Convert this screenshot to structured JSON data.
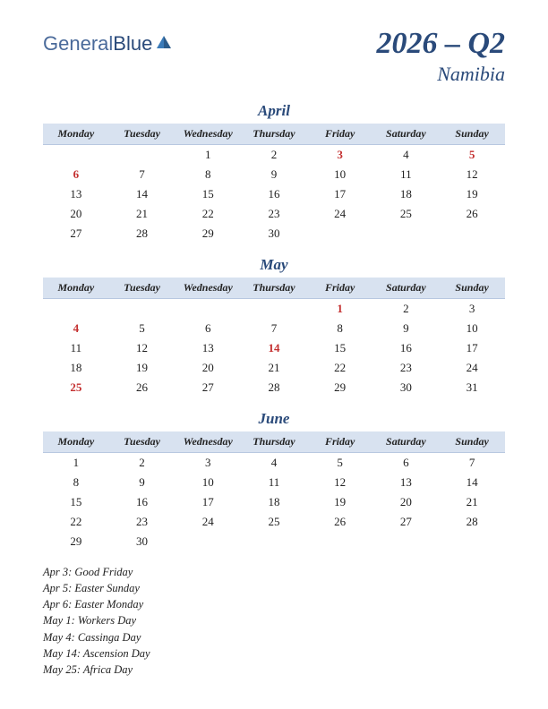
{
  "logo": {
    "part1": "General",
    "part2": "Blue"
  },
  "title": {
    "main": "2026 – Q2",
    "sub": "Namibia"
  },
  "weekdays": [
    "Monday",
    "Tuesday",
    "Wednesday",
    "Thursday",
    "Friday",
    "Saturday",
    "Sunday"
  ],
  "months": [
    {
      "name": "April",
      "weeks": [
        [
          null,
          null,
          {
            "d": 1
          },
          {
            "d": 2
          },
          {
            "d": 3,
            "h": true
          },
          {
            "d": 4
          },
          {
            "d": 5,
            "h": true
          }
        ],
        [
          {
            "d": 6,
            "h": true
          },
          {
            "d": 7
          },
          {
            "d": 8
          },
          {
            "d": 9
          },
          {
            "d": 10
          },
          {
            "d": 11
          },
          {
            "d": 12
          }
        ],
        [
          {
            "d": 13
          },
          {
            "d": 14
          },
          {
            "d": 15
          },
          {
            "d": 16
          },
          {
            "d": 17
          },
          {
            "d": 18
          },
          {
            "d": 19
          }
        ],
        [
          {
            "d": 20
          },
          {
            "d": 21
          },
          {
            "d": 22
          },
          {
            "d": 23
          },
          {
            "d": 24
          },
          {
            "d": 25
          },
          {
            "d": 26
          }
        ],
        [
          {
            "d": 27
          },
          {
            "d": 28
          },
          {
            "d": 29
          },
          {
            "d": 30
          },
          null,
          null,
          null
        ]
      ]
    },
    {
      "name": "May",
      "weeks": [
        [
          null,
          null,
          null,
          null,
          {
            "d": 1,
            "h": true
          },
          {
            "d": 2
          },
          {
            "d": 3
          }
        ],
        [
          {
            "d": 4,
            "h": true
          },
          {
            "d": 5
          },
          {
            "d": 6
          },
          {
            "d": 7
          },
          {
            "d": 8
          },
          {
            "d": 9
          },
          {
            "d": 10
          }
        ],
        [
          {
            "d": 11
          },
          {
            "d": 12
          },
          {
            "d": 13
          },
          {
            "d": 14,
            "h": true
          },
          {
            "d": 15
          },
          {
            "d": 16
          },
          {
            "d": 17
          }
        ],
        [
          {
            "d": 18
          },
          {
            "d": 19
          },
          {
            "d": 20
          },
          {
            "d": 21
          },
          {
            "d": 22
          },
          {
            "d": 23
          },
          {
            "d": 24
          }
        ],
        [
          {
            "d": 25,
            "h": true
          },
          {
            "d": 26
          },
          {
            "d": 27
          },
          {
            "d": 28
          },
          {
            "d": 29
          },
          {
            "d": 30
          },
          {
            "d": 31
          }
        ]
      ]
    },
    {
      "name": "June",
      "weeks": [
        [
          {
            "d": 1
          },
          {
            "d": 2
          },
          {
            "d": 3
          },
          {
            "d": 4
          },
          {
            "d": 5
          },
          {
            "d": 6
          },
          {
            "d": 7
          }
        ],
        [
          {
            "d": 8
          },
          {
            "d": 9
          },
          {
            "d": 10
          },
          {
            "d": 11
          },
          {
            "d": 12
          },
          {
            "d": 13
          },
          {
            "d": 14
          }
        ],
        [
          {
            "d": 15
          },
          {
            "d": 16
          },
          {
            "d": 17
          },
          {
            "d": 18
          },
          {
            "d": 19
          },
          {
            "d": 20
          },
          {
            "d": 21
          }
        ],
        [
          {
            "d": 22
          },
          {
            "d": 23
          },
          {
            "d": 24
          },
          {
            "d": 25
          },
          {
            "d": 26
          },
          {
            "d": 27
          },
          {
            "d": 28
          }
        ],
        [
          {
            "d": 29
          },
          {
            "d": 30
          },
          null,
          null,
          null,
          null,
          null
        ]
      ]
    }
  ],
  "holidays": [
    "Apr 3: Good Friday",
    "Apr 5: Easter Sunday",
    "Apr 6: Easter Monday",
    "May 1: Workers Day",
    "May 4: Cassinga Day",
    "May 14: Ascension Day",
    "May 25: Africa Day"
  ],
  "colors": {
    "header_bg": "#d8e2f0",
    "title_color": "#2a4a7a",
    "holiday_color": "#c43030"
  }
}
